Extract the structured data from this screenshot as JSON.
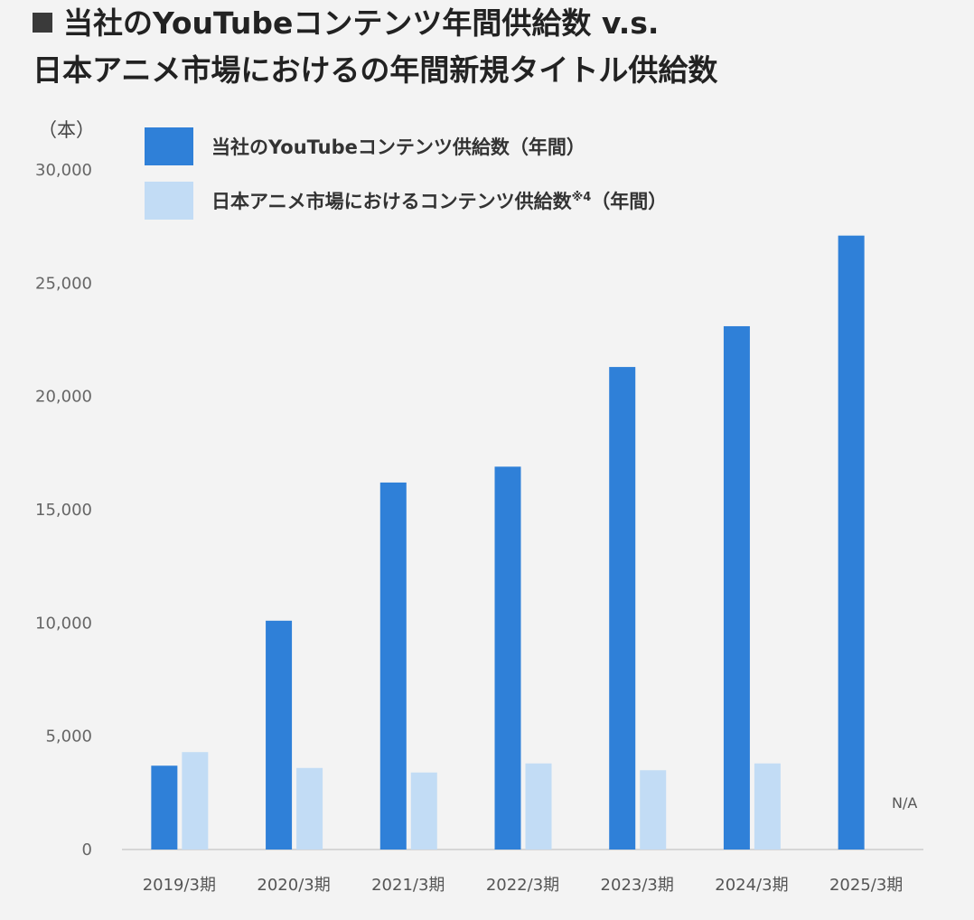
{
  "title": {
    "line1": "当社のYouTubeコンテンツ年間供給数 v.s.",
    "line2": "日本アニメ市場におけるの年間新規タイトル供給数"
  },
  "unit_label": "（本）",
  "colors": {
    "company": "#2f80d8",
    "market": "#c2dcf5",
    "background": "#f3f3f3",
    "axis": "#cccccc"
  },
  "legend": {
    "company": {
      "label": "当社のYouTubeコンテンツ供給数（年間）"
    },
    "market": {
      "label": "日本アニメ市場におけるコンテンツ供給数",
      "note": "※4",
      "suffix": "（年間）"
    }
  },
  "na_label": "N/A",
  "chart_data": {
    "type": "bar",
    "categories": [
      "2019/3期",
      "2020/3期",
      "2021/3期",
      "2022/3期",
      "2023/3期",
      "2024/3期",
      "2025/3期"
    ],
    "series": [
      {
        "name": "当社のYouTubeコンテンツ供給数（年間）",
        "values": [
          3700,
          10100,
          16200,
          16900,
          21300,
          23100,
          27100
        ]
      },
      {
        "name": "日本アニメ市場におけるコンテンツ供給数※4（年間）",
        "values": [
          4300,
          3600,
          3400,
          3800,
          3500,
          3800,
          null
        ]
      }
    ],
    "ylim": [
      0,
      30000
    ],
    "yticks": [
      0,
      5000,
      10000,
      15000,
      20000,
      25000,
      30000
    ],
    "ytick_labels": [
      "0",
      "5,000",
      "10,000",
      "15,000",
      "20,000",
      "25,000",
      "30,000"
    ],
    "grid": false,
    "legend_position": "top-left"
  }
}
